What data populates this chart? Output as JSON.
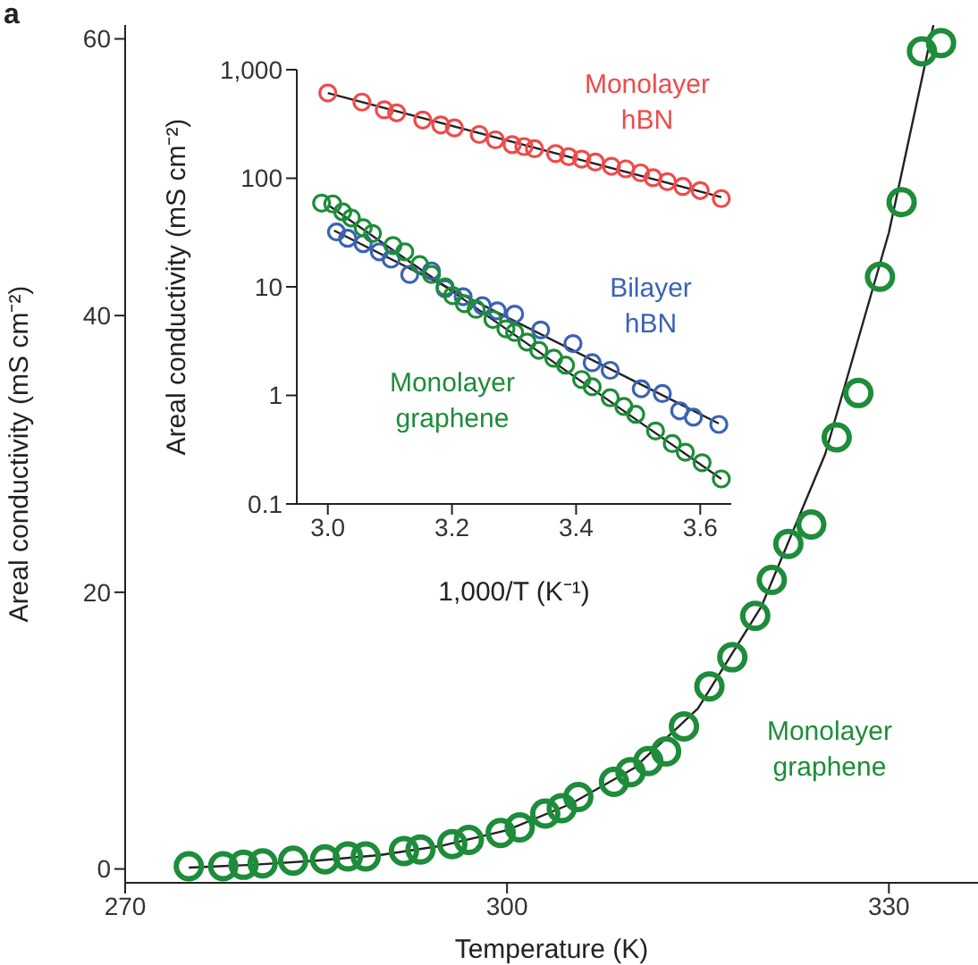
{
  "chart_data": [
    {
      "type": "scatter",
      "xlabel": "Temperature (K)",
      "ylabel": "Areal conductivity (mS cm⁻²)",
      "annotations": [
        "a"
      ],
      "xlim": [
        270,
        337
      ],
      "ylim": [
        -1,
        61
      ],
      "xticks": [
        270,
        300,
        330
      ],
      "yticks": [
        0,
        20,
        40,
        60
      ],
      "series": [
        {
          "name": "Monolayer graphene",
          "marker": "circle",
          "color": "#1e8c3a",
          "x": [
            275.0,
            277.7,
            279.3,
            280.8,
            283.2,
            285.7,
            287.5,
            288.9,
            291.9,
            293.2,
            295.7,
            297.0,
            299.5,
            301.0,
            303.0,
            304.3,
            305.6,
            308.4,
            309.7,
            311.1,
            312.5,
            313.9,
            315.9,
            317.7,
            319.5,
            320.8,
            322.1,
            323.9,
            325.9,
            327.6,
            329.3,
            331.0,
            332.6,
            334.1
          ],
          "values": [
            0.2,
            0.2,
            0.3,
            0.4,
            0.6,
            0.7,
            0.9,
            0.9,
            1.3,
            1.4,
            1.8,
            2.1,
            2.6,
            3.0,
            4.0,
            4.4,
            5.2,
            6.3,
            7.0,
            7.8,
            8.5,
            10.3,
            13.2,
            15.3,
            18.3,
            20.9,
            23.5,
            24.9,
            31.2,
            34.4,
            42.8,
            48.2,
            59.1,
            59.7
          ]
        },
        {
          "type": "line",
          "marker": "none",
          "color": "#222222",
          "x": [
            275,
            280,
            285,
            290,
            295,
            300,
            305,
            310,
            315,
            320,
            325,
            330,
            333.5
          ],
          "values": [
            0.1,
            0.3,
            0.6,
            1.0,
            1.7,
            2.8,
            4.7,
            7.3,
            11.6,
            19,
            30,
            46,
            61
          ]
        }
      ]
    },
    {
      "type": "scatter",
      "xlabel": "1,000/T (K⁻¹)",
      "ylabel": "Areal conductivity (mS cm⁻²)",
      "log": "y",
      "xlim": [
        2.95,
        3.65
      ],
      "ylim": [
        0.1,
        1000
      ],
      "xticks": [
        {
          "value": 3,
          "label": "3.0"
        },
        3.2,
        3.4,
        3.6
      ],
      "yticks": [
        0.1,
        1,
        10,
        100,
        {
          "value": 1000,
          "label": "1,000"
        }
      ],
      "series": [
        {
          "name": "Monolayer hBN",
          "marker": "circle",
          "color": "#ee4b4b",
          "x": [
            3.0,
            3.055,
            3.091,
            3.111,
            3.153,
            3.182,
            3.204,
            3.244,
            3.27,
            3.297,
            3.316,
            3.333,
            3.367,
            3.388,
            3.409,
            3.431,
            3.457,
            3.48,
            3.504,
            3.524,
            3.547,
            3.572,
            3.6,
            3.634
          ],
          "values": [
            610,
            503,
            427,
            400,
            344,
            310,
            291,
            253,
            226,
            204,
            196,
            187,
            169,
            158,
            150,
            141,
            129,
            122,
            112,
            101,
            93,
            84,
            77,
            65
          ]
        },
        {
          "name": "Bilayer hBN",
          "marker": "circle",
          "color": "#3b63b3",
          "x": [
            3.014,
            3.032,
            3.057,
            3.083,
            3.102,
            3.132,
            3.167,
            3.189,
            3.218,
            3.249,
            3.273,
            3.301,
            3.343,
            3.395,
            3.426,
            3.455,
            3.505,
            3.539,
            3.567,
            3.589,
            3.63
          ],
          "values": [
            32,
            28,
            25,
            21,
            18,
            13,
            14,
            9.6,
            8.1,
            6.7,
            6.0,
            5.6,
            4.0,
            3.0,
            2.0,
            1.7,
            1.15,
            1.04,
            0.72,
            0.63,
            0.54
          ]
        },
        {
          "name": "Monolayer graphene",
          "marker": "circle",
          "color": "#1e8c3a",
          "x": [
            2.99,
            3.008,
            3.024,
            3.038,
            3.057,
            3.072,
            3.105,
            3.124,
            3.148,
            3.167,
            3.189,
            3.201,
            3.22,
            3.239,
            3.266,
            3.287,
            3.301,
            3.321,
            3.34,
            3.364,
            3.383,
            3.409,
            3.426,
            3.455,
            3.477,
            3.496,
            3.528,
            3.555,
            3.576,
            3.603,
            3.634
          ],
          "values": [
            59,
            58,
            49,
            43,
            35,
            31,
            24,
            21,
            16,
            13,
            10,
            8.3,
            7.0,
            6.2,
            5.0,
            4.1,
            3.8,
            3.1,
            2.6,
            2.2,
            1.9,
            1.4,
            1.2,
            0.95,
            0.79,
            0.67,
            0.47,
            0.36,
            0.3,
            0.24,
            0.17
          ]
        },
        {
          "type": "line",
          "marker": "none",
          "color": "#222222",
          "x": [
            3.0,
            3.634
          ],
          "values": [
            610,
            67
          ]
        },
        {
          "type": "line",
          "marker": "none",
          "color": "#222222",
          "x": [
            3.01,
            3.63
          ],
          "values": [
            33,
            0.55
          ]
        },
        {
          "type": "line",
          "marker": "none",
          "color": "#222222",
          "x": [
            3.0,
            3.634
          ],
          "values": [
            57,
            0.17
          ]
        }
      ]
    }
  ]
}
